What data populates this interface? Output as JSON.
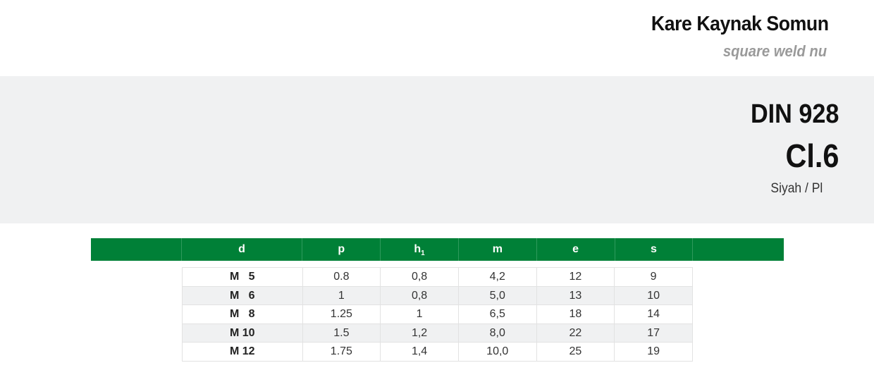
{
  "header": {
    "title": "Kare Kaynak Somun",
    "subtitle": "square weld nu"
  },
  "spec": {
    "standard": "DIN 928",
    "grade": "Cl.6",
    "finish": "Siyah / Pl"
  },
  "table": {
    "columns": [
      "d",
      "p",
      "h",
      "m",
      "e",
      "s"
    ],
    "h_subscript": "1",
    "rows": [
      [
        "M   5",
        "0.8",
        "0,8",
        "4,2",
        "12",
        "9"
      ],
      [
        "M   6",
        "1",
        "0,8",
        "5,0",
        "13",
        "10"
      ],
      [
        "M   8",
        "1.25",
        "1",
        "6,5",
        "18",
        "14"
      ],
      [
        "M 10",
        "1.5",
        "1,2",
        "8,0",
        "22",
        "17"
      ],
      [
        "M 12",
        "1.75",
        "1,4",
        "10,0",
        "25",
        "19"
      ]
    ]
  },
  "colors": {
    "header_green": "#008037",
    "band_gray": "#f0f1f2"
  }
}
